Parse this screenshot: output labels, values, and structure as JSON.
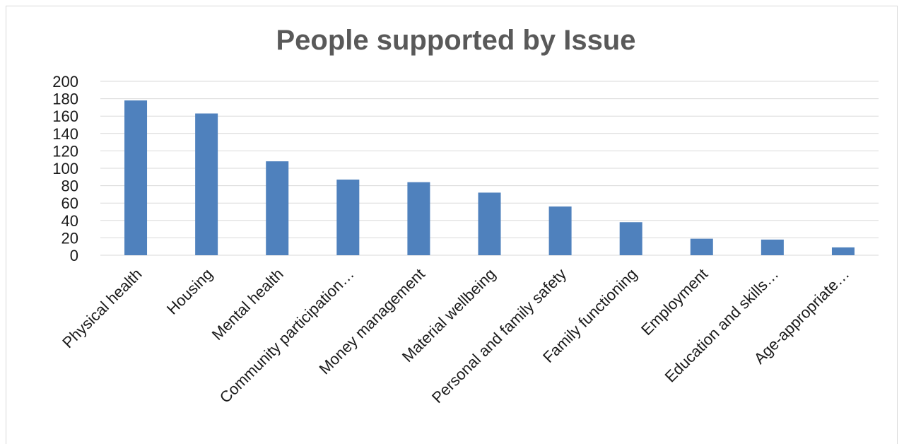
{
  "chart_data": {
    "type": "bar",
    "title": "People supported by Issue",
    "xlabel": "",
    "ylabel": "",
    "categories": [
      "Physical health",
      "Housing",
      "Mental health",
      "Community participation…",
      "Money management",
      "Material wellbeing",
      "Personal and family safety",
      "Family functioning",
      "Employment",
      "Education and skills…",
      "Age-appropriate…"
    ],
    "values": [
      178,
      163,
      108,
      87,
      84,
      72,
      56,
      38,
      19,
      18,
      9
    ],
    "ylim": [
      0,
      200
    ],
    "yticks": [
      "0",
      "20",
      "40",
      "60",
      "80",
      "100",
      "120",
      "140",
      "160",
      "180",
      "200"
    ],
    "grid": true,
    "legend": "none",
    "bar_color": "#4f81bd",
    "grid_color": "#d9d9d9"
  }
}
